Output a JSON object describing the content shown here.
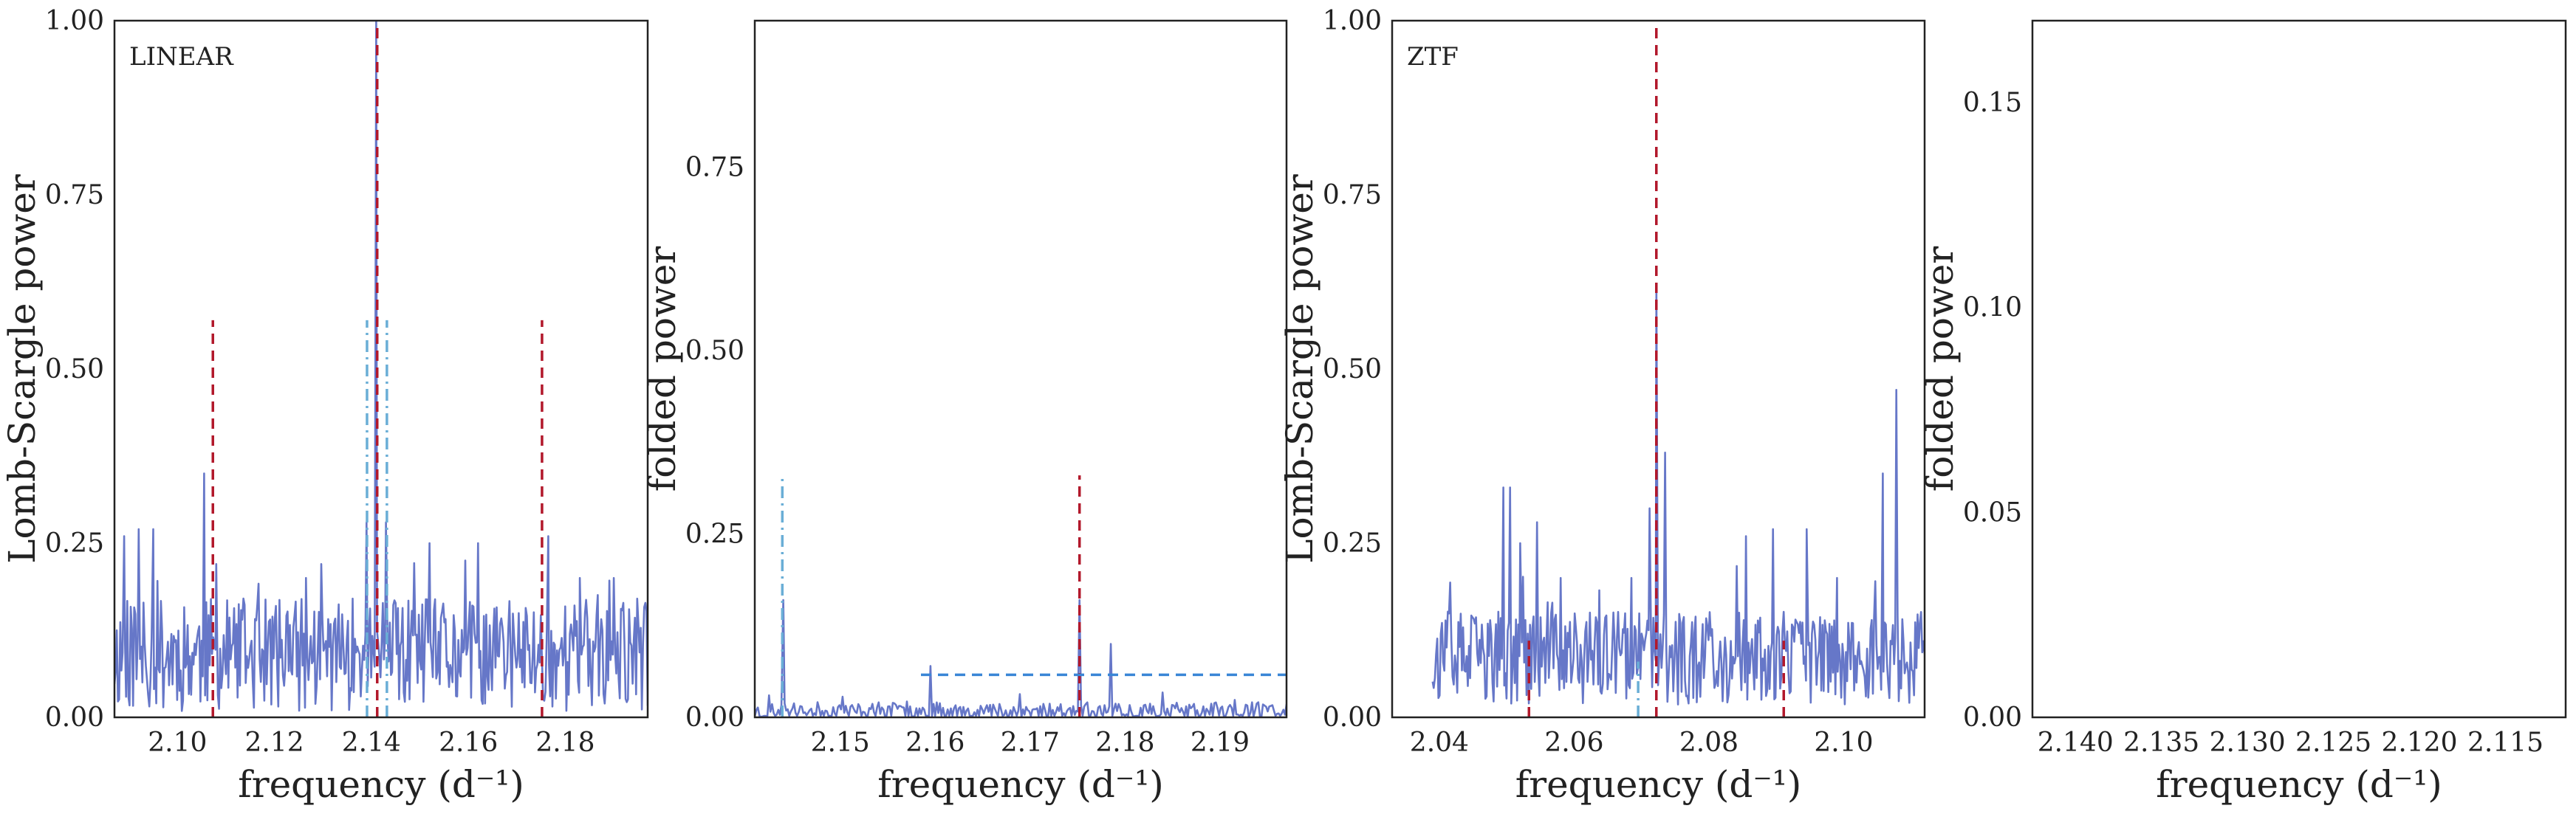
{
  "chart_data": [
    {
      "type": "line",
      "panel_label": "LINEAR",
      "xlabel": "frequency (d⁻¹)",
      "ylabel": "Lomb-Scargle power",
      "xlim": [
        2.087,
        2.197
      ],
      "ylim": [
        0,
        1.0
      ],
      "xticks": [
        2.1,
        2.12,
        2.14,
        2.16,
        2.18
      ],
      "xtick_labels": [
        "2.10",
        "2.12",
        "2.14",
        "2.16",
        "2.18"
      ],
      "yticks": [
        0,
        0.25,
        0.5,
        0.75,
        1.0
      ],
      "ytick_labels": [
        "0.00",
        "0.25",
        "0.50",
        "0.75",
        "1.00"
      ],
      "grid": false,
      "series": [
        {
          "color": "#6677c8",
          "style": "solid",
          "noise": {
            "x0": 2.087,
            "x1": 2.197,
            "n": 460,
            "base": 0.09,
            "amp": 0.09,
            "seed": 11
          },
          "peaks": [
            [
              2.089,
              0.26
            ],
            [
              2.092,
              0.27
            ],
            [
              2.095,
              0.27
            ],
            [
              2.1055,
              0.35
            ],
            [
              2.108,
              0.22
            ],
            [
              2.1265,
              0.2
            ],
            [
              2.139,
              0.28
            ],
            [
              2.141,
              1.0
            ],
            [
              2.143,
              0.28
            ],
            [
              2.152,
              0.25
            ],
            [
              2.162,
              0.25
            ],
            [
              2.1765,
              0.26
            ],
            [
              2.183,
              0.2
            ],
            [
              2.19,
              0.2
            ]
          ]
        }
      ],
      "vlines": [
        {
          "x": 2.1073,
          "ymax": 0.57,
          "color": "#b2182b",
          "style": "dashed"
        },
        {
          "x": 2.1412,
          "ymax": 1.0,
          "color": "#b2182b",
          "style": "dashed"
        },
        {
          "x": 2.1752,
          "ymax": 0.57,
          "color": "#b2182b",
          "style": "dashed"
        },
        {
          "x": 2.1391,
          "ymax": 0.57,
          "color": "#6aaed6",
          "style": "dashdot"
        },
        {
          "x": 2.1432,
          "ymax": 0.57,
          "color": "#6aaed6",
          "style": "dashdot"
        }
      ],
      "hlines": []
    },
    {
      "type": "line",
      "panel_label": "",
      "xlabel": "frequency (d⁻¹)",
      "ylabel": "folded power",
      "xlim": [
        2.141,
        2.197
      ],
      "ylim": [
        0,
        0.95
      ],
      "xticks": [
        2.15,
        2.16,
        2.17,
        2.18,
        2.19
      ],
      "xtick_labels": [
        "2.15",
        "2.16",
        "2.17",
        "2.18",
        "2.19"
      ],
      "yticks": [
        0,
        0.25,
        0.5,
        0.75
      ],
      "ytick_labels": [
        "0.00",
        "0.25",
        "0.50",
        "0.75"
      ],
      "grid": false,
      "series": [
        {
          "color": "#6677c8",
          "style": "solid",
          "noise": {
            "x0": 2.141,
            "x1": 2.197,
            "n": 340,
            "base": 0.008,
            "amp": 0.014,
            "seed": 23
          },
          "peaks": [
            [
              2.1425,
              0.03
            ],
            [
              2.144,
              0.16
            ],
            [
              2.1595,
              0.07
            ],
            [
              2.1752,
              0.16
            ],
            [
              2.1785,
              0.1
            ]
          ]
        }
      ],
      "vlines": [
        {
          "x": 2.1439,
          "ymax": 0.33,
          "color": "#6aaed6",
          "style": "dashdot"
        },
        {
          "x": 2.1752,
          "ymax": 0.33,
          "color": "#b2182b",
          "style": "dashed"
        }
      ],
      "hlines": [
        {
          "y": 0.058,
          "xmin": 2.1585,
          "xmax": 2.197,
          "color": "#3a86d6",
          "style": "dashed"
        }
      ]
    },
    {
      "type": "line",
      "panel_label": "ZTF",
      "xlabel": "frequency (d⁻¹)",
      "ylabel": "Lomb-Scargle power",
      "xlim": [
        2.033,
        2.112
      ],
      "ylim": [
        0,
        1.0
      ],
      "xticks": [
        2.04,
        2.06,
        2.08,
        2.1
      ],
      "xtick_labels": [
        "2.04",
        "2.06",
        "2.08",
        "2.10"
      ],
      "yticks": [
        0,
        0.25,
        0.5,
        0.75,
        1.0
      ],
      "ytick_labels": [
        "0.00",
        "0.25",
        "0.50",
        "0.75",
        "1.00"
      ],
      "grid": false,
      "series": [
        {
          "color": "#6677c8",
          "style": "solid",
          "noise": {
            "x0": 2.039,
            "x1": 2.112,
            "n": 420,
            "base": 0.085,
            "amp": 0.075,
            "seed": 37
          },
          "peaks": [
            [
              2.0495,
              0.33
            ],
            [
              2.0505,
              0.33
            ],
            [
              2.052,
              0.25
            ],
            [
              2.0545,
              0.28
            ],
            [
              2.058,
              0.2
            ],
            [
              2.0685,
              0.2
            ],
            [
              2.0712,
              0.3
            ],
            [
              2.0722,
              0.62
            ],
            [
              2.0735,
              0.38
            ],
            [
              2.0855,
              0.26
            ],
            [
              2.0895,
              0.27
            ],
            [
              2.0945,
              0.27
            ],
            [
              2.099,
              0.2
            ],
            [
              2.1058,
              0.35
            ],
            [
              2.1078,
              0.47
            ]
          ]
        }
      ],
      "vlines": [
        {
          "x": 2.0533,
          "ymax": 0.11,
          "color": "#b2182b",
          "style": "dashed"
        },
        {
          "x": 2.0722,
          "ymax": 1.0,
          "color": "#b2182b",
          "style": "dashed"
        },
        {
          "x": 2.0911,
          "ymax": 0.11,
          "color": "#b2182b",
          "style": "dashed"
        },
        {
          "x": 2.0695,
          "ymax": 0.08,
          "color": "#6aaed6",
          "style": "dashdot"
        }
      ],
      "hlines": []
    },
    {
      "type": "line",
      "panel_label": "",
      "xlabel": "frequency (d⁻¹)",
      "ylabel": "folded power",
      "xlim": [
        2.1425,
        2.1115
      ],
      "ylim": [
        0,
        0.17
      ],
      "xticks": [
        2.14,
        2.135,
        2.13,
        2.125,
        2.12,
        2.115
      ],
      "xtick_labels": [
        "2.140",
        "2.135",
        "2.130",
        "2.125",
        "2.120",
        "2.115"
      ],
      "yticks": [
        0,
        0.05,
        0.1,
        0.15
      ],
      "ytick_labels": [
        "0.00",
        "0.05",
        "0.10",
        "0.15"
      ],
      "grid": false,
      "series": [],
      "vlines": [],
      "hlines": []
    }
  ]
}
